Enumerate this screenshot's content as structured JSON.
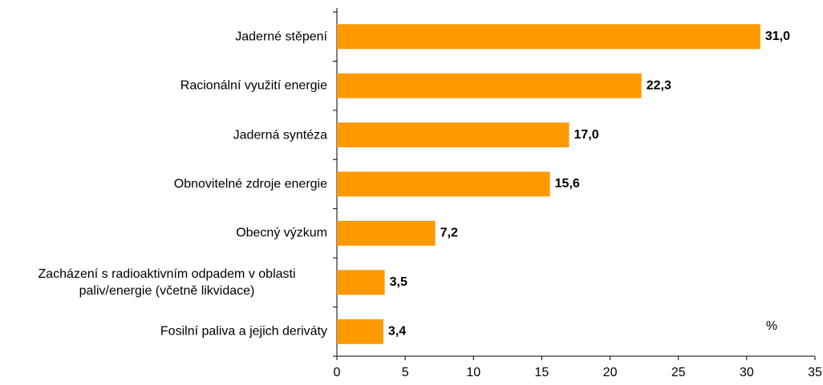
{
  "chart_data": {
    "type": "bar",
    "orientation": "horizontal",
    "categories": [
      "Jaderné stěpení",
      "Racionální využití energie",
      "Jaderná syntéza",
      "Obnovitelné zdroje energie",
      "Obecný výzkum",
      "Zacházení s radioaktivním odpadem v oblasti paliv/energie (včetně likvidace)",
      "Fosilní paliva a jejich deriváty"
    ],
    "values": [
      31.0,
      22.3,
      17.0,
      15.6,
      7.2,
      3.5,
      3.4
    ],
    "value_labels": [
      "31,0",
      "22,3",
      "17,0",
      "15,6",
      "7,2",
      "3,5",
      "3,4"
    ],
    "color": "#ff9900",
    "xlim": [
      0,
      35
    ],
    "xticks": [
      0,
      5,
      10,
      15,
      20,
      25,
      30,
      35
    ],
    "annotation": "%"
  }
}
